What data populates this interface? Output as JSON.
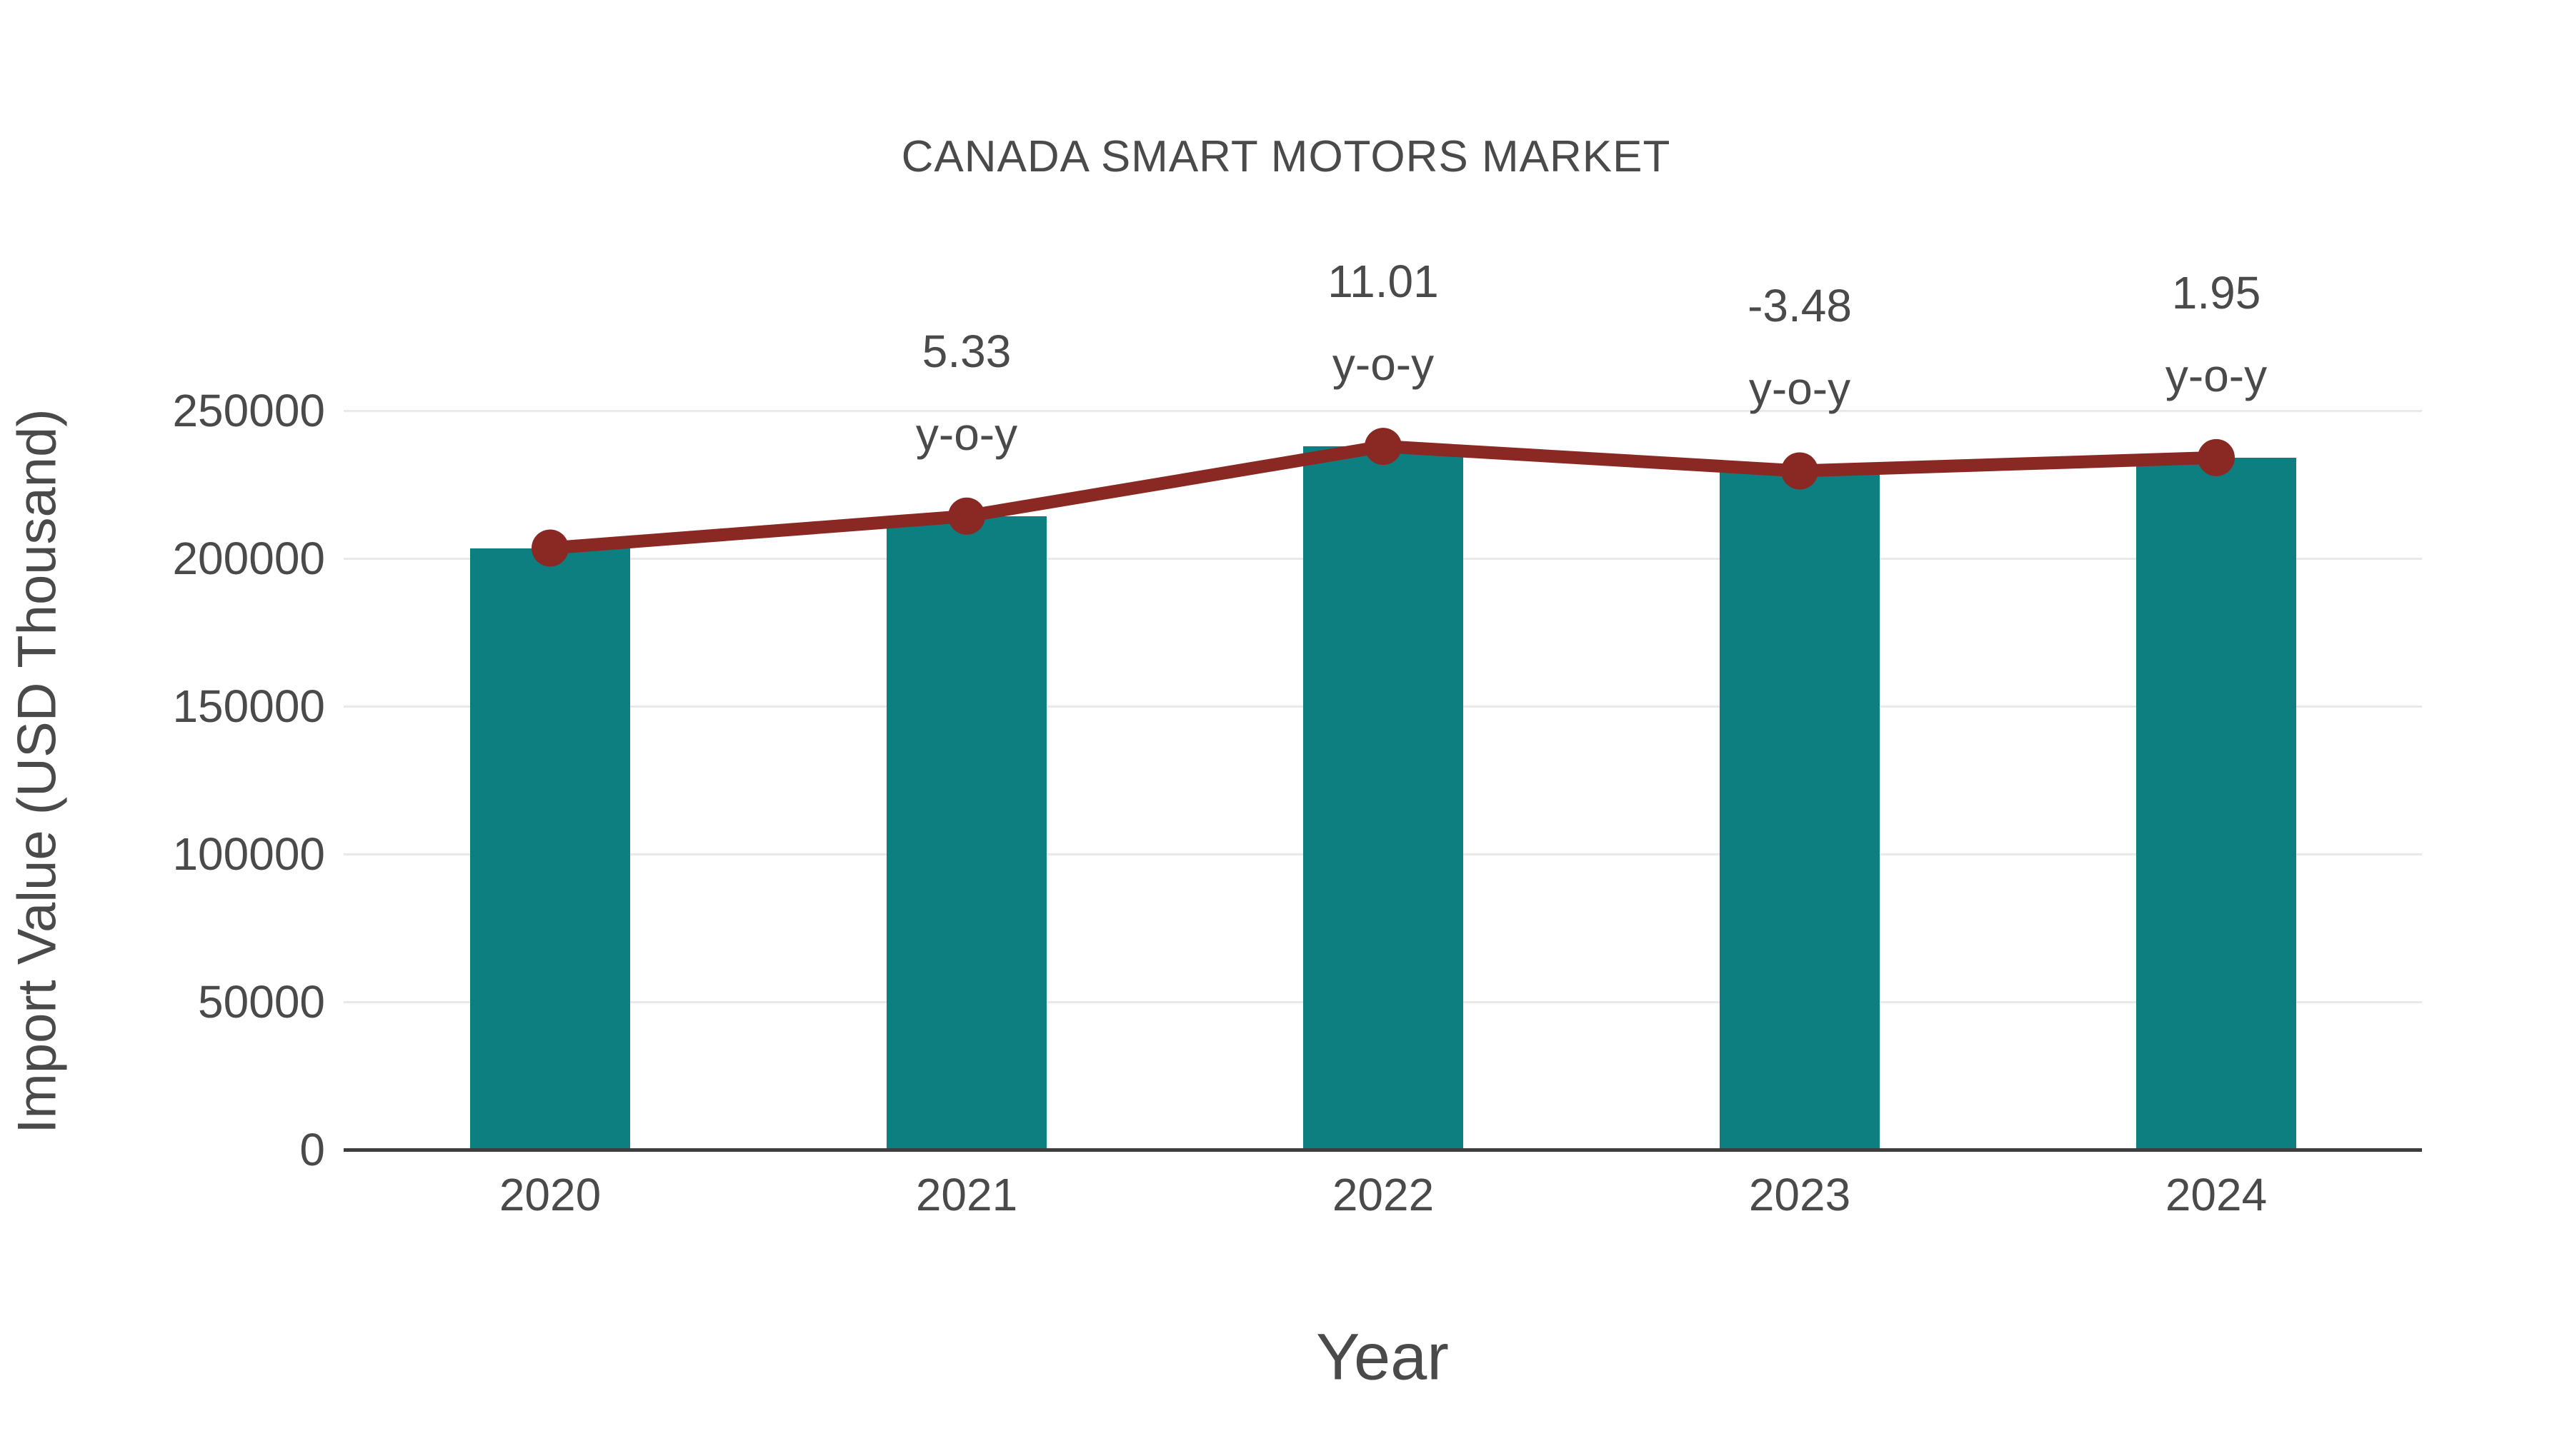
{
  "title": "CANADA SMART MOTORS MARKET",
  "colors": {
    "bar": "#0e7f80",
    "line": "#8a2823",
    "grid": "#e9e9e9",
    "axis": "#3d3d3d",
    "text": "#4a4a4a"
  },
  "chart_data": {
    "type": "bar",
    "title": "CANADA SMART MOTORS MARKET",
    "xlabel": "Year",
    "ylabel": "Import Value (USD Thousand)",
    "categories": [
      "2020",
      "2021",
      "2022",
      "2023",
      "2024"
    ],
    "series": [
      {
        "name": "Import Value (USD Thousand)",
        "type": "bar",
        "values": [
          203500,
          214300,
          237900,
          229600,
          234100
        ]
      },
      {
        "name": "y-o-y",
        "type": "line",
        "values": [
          203500,
          214300,
          237900,
          229600,
          234100
        ]
      }
    ],
    "yoy_percent": [
      null,
      5.33,
      11.01,
      -3.48,
      1.95
    ],
    "yoy_suffix": "y-o-y",
    "yticks": [
      0,
      50000,
      100000,
      150000,
      200000,
      250000
    ],
    "ylim": [
      0,
      250000
    ],
    "grid": "horizontal",
    "legend": "none"
  }
}
